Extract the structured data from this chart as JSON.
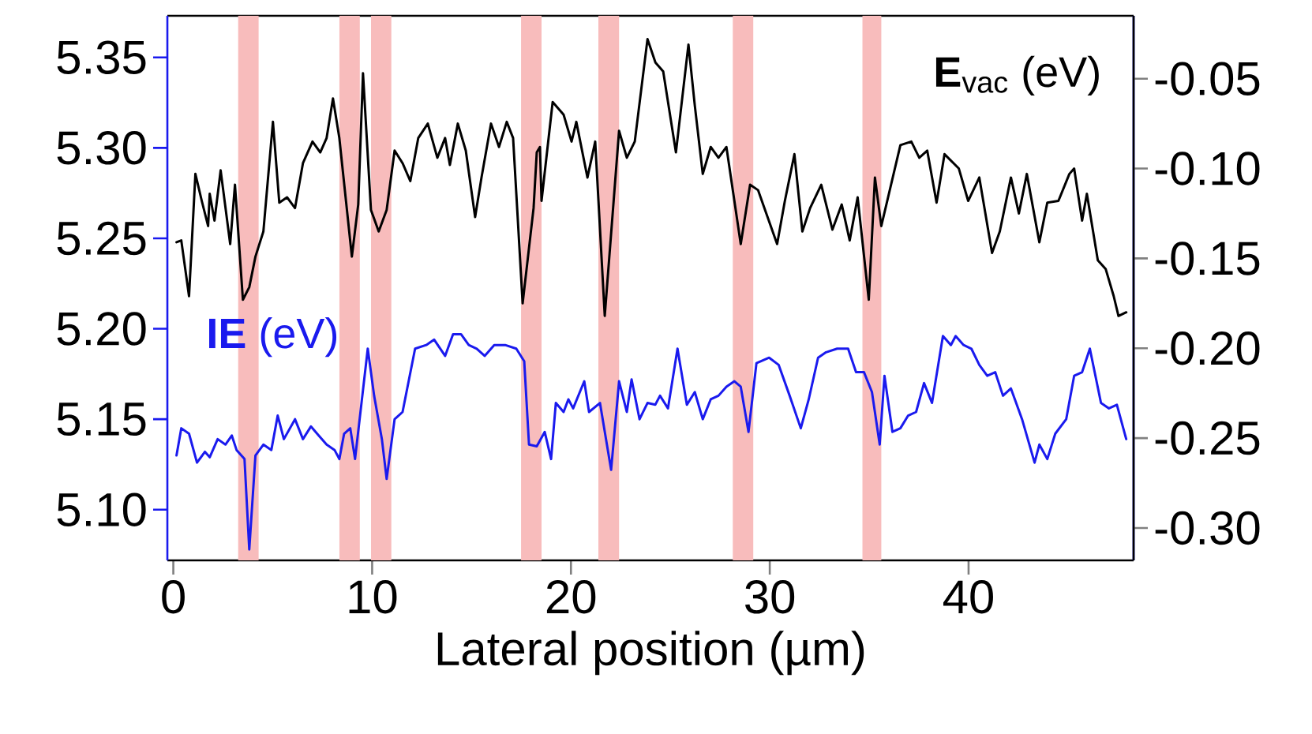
{
  "chart_data": {
    "type": "line",
    "xlabel": "Lateral position (µm)",
    "xlim": [
      -0.3,
      48.3
    ],
    "xticks": [
      0,
      10,
      20,
      30,
      40
    ],
    "ylim": [
      5.072,
      5.373
    ],
    "yticks": [
      {
        "value": 5.1,
        "label": "5.10"
      },
      {
        "value": 5.15,
        "label": "5.15"
      },
      {
        "value": 5.2,
        "label": "5.20"
      },
      {
        "value": 5.25,
        "label": "5.25"
      },
      {
        "value": 5.3,
        "label": "5.30"
      },
      {
        "value": 5.35,
        "label": "5.35"
      }
    ],
    "y2lim": [
      -0.318,
      -0.015
    ],
    "y2ticks": [
      {
        "value": -0.3,
        "label": "-0.30"
      },
      {
        "value": -0.25,
        "label": "-0.25"
      },
      {
        "value": -0.2,
        "label": "-0.20"
      },
      {
        "value": -0.15,
        "label": "-0.15"
      },
      {
        "value": -0.1,
        "label": "-0.10"
      },
      -0.05
    ],
    "bands": [
      {
        "axis": "x",
        "from": 3.26,
        "to": 4.29,
        "color": "#f8bcbc"
      },
      {
        "axis": "x",
        "from": 8.35,
        "to": 9.38,
        "color": "#f8bcbc"
      },
      {
        "axis": "x",
        "from": 9.94,
        "to": 10.97,
        "color": "#f8bcbc"
      },
      {
        "axis": "x",
        "from": 17.49,
        "to": 18.52,
        "color": "#f8bcbc"
      },
      {
        "axis": "x",
        "from": 21.38,
        "to": 22.42,
        "color": "#f8bcbc"
      },
      {
        "axis": "x",
        "from": 28.14,
        "to": 29.17,
        "color": "#f8bcbc"
      },
      {
        "axis": "x",
        "from": 34.66,
        "to": 35.61,
        "color": "#f8bcbc"
      }
    ],
    "series": [
      {
        "name": "**IE** (eV)",
        "color": "#1a1aee",
        "x": [
          0.16,
          0.4,
          0.79,
          1.19,
          1.59,
          1.83,
          2.23,
          2.62,
          2.94,
          3.18,
          3.58,
          3.82,
          4.13,
          4.53,
          4.93,
          5.25,
          5.56,
          6.12,
          6.52,
          6.92,
          7.31,
          7.71,
          8.11,
          8.35,
          8.59,
          8.9,
          9.14,
          9.78,
          10.1,
          10.49,
          10.73,
          11.13,
          11.53,
          12.16,
          12.72,
          13.12,
          13.67,
          14.07,
          14.47,
          14.86,
          15.26,
          15.66,
          16.14,
          16.69,
          17.25,
          17.65,
          17.89,
          18.28,
          18.68,
          19.0,
          19.24,
          19.63,
          19.87,
          20.11,
          20.67,
          20.91,
          21.46,
          22.02,
          22.42,
          22.81,
          23.05,
          23.45,
          23.85,
          24.24,
          24.48,
          24.88,
          25.36,
          25.83,
          26.23,
          26.63,
          27.03,
          27.42,
          27.82,
          28.22,
          28.54,
          28.93,
          29.33,
          29.97,
          30.45,
          31.0,
          31.56,
          31.96,
          32.43,
          32.83,
          33.39,
          33.94,
          34.34,
          34.74,
          35.14,
          35.53,
          35.77,
          36.17,
          36.57,
          36.96,
          37.36,
          37.76,
          38.16,
          38.71,
          39.11,
          39.35,
          39.75,
          40.14,
          40.54,
          40.94,
          41.34,
          41.73,
          42.13,
          42.69,
          43.32,
          43.56,
          43.96,
          44.36,
          44.91,
          45.31,
          45.71,
          46.1,
          46.66,
          47.06,
          47.46,
          47.93
        ],
        "values": [
          5.13,
          5.145,
          5.142,
          5.126,
          5.132,
          5.129,
          5.139,
          5.136,
          5.141,
          5.133,
          5.128,
          5.078,
          5.13,
          5.136,
          5.133,
          5.152,
          5.139,
          5.15,
          5.139,
          5.146,
          5.141,
          5.136,
          5.133,
          5.128,
          5.142,
          5.145,
          5.128,
          5.189,
          5.163,
          5.139,
          5.117,
          5.15,
          5.154,
          5.189,
          5.191,
          5.194,
          5.185,
          5.197,
          5.197,
          5.191,
          5.189,
          5.185,
          5.191,
          5.191,
          5.189,
          5.182,
          5.136,
          5.135,
          5.143,
          5.128,
          5.159,
          5.154,
          5.161,
          5.156,
          5.171,
          5.154,
          5.159,
          5.122,
          5.171,
          5.154,
          5.172,
          5.15,
          5.159,
          5.158,
          5.163,
          5.156,
          5.189,
          5.158,
          5.165,
          5.15,
          5.161,
          5.163,
          5.168,
          5.171,
          5.168,
          5.143,
          5.181,
          5.184,
          5.18,
          5.163,
          5.145,
          5.161,
          5.184,
          5.187,
          5.189,
          5.189,
          5.176,
          5.176,
          5.165,
          5.136,
          5.174,
          5.143,
          5.145,
          5.152,
          5.154,
          5.17,
          5.159,
          5.196,
          5.191,
          5.196,
          5.191,
          5.189,
          5.18,
          5.174,
          5.176,
          5.163,
          5.167,
          5.15,
          5.126,
          5.136,
          5.128,
          5.142,
          5.15,
          5.174,
          5.176,
          5.189,
          5.159,
          5.156,
          5.158,
          5.139
        ]
      },
      {
        "name": "**E**$_{vac}$ (eV)",
        "color": "#000000",
        "axis": "y2",
        "x": [
          0.16,
          0.4,
          0.79,
          1.11,
          1.43,
          1.75,
          1.83,
          2.07,
          2.38,
          2.86,
          3.1,
          3.5,
          3.82,
          4.13,
          4.53,
          5.01,
          5.33,
          5.72,
          6.12,
          6.52,
          7.0,
          7.39,
          7.71,
          8.03,
          8.35,
          8.98,
          9.3,
          9.54,
          9.94,
          10.33,
          10.73,
          11.13,
          11.53,
          11.92,
          12.32,
          12.8,
          13.28,
          13.67,
          13.91,
          14.31,
          14.71,
          15.18,
          15.5,
          15.98,
          16.38,
          16.77,
          17.09,
          17.57,
          18.12,
          18.28,
          18.44,
          18.52,
          19.08,
          19.63,
          20.03,
          20.27,
          20.83,
          21.22,
          21.7,
          22.42,
          22.81,
          23.21,
          23.85,
          24.25,
          24.64,
          25.28,
          25.91,
          26.23,
          26.63,
          27.03,
          27.42,
          27.82,
          28.54,
          29.01,
          29.41,
          30.37,
          30.76,
          31.24,
          31.64,
          32.03,
          32.59,
          33.15,
          33.62,
          34.02,
          34.42,
          34.98,
          35.29,
          35.61,
          36.57,
          37.12,
          37.52,
          37.92,
          38.39,
          38.79,
          39.51,
          39.98,
          40.54,
          41.18,
          41.57,
          42.13,
          42.53,
          42.93,
          43.56,
          43.96,
          44.52,
          45.07,
          45.31,
          45.71,
          45.95,
          46.5,
          46.9,
          47.3,
          47.54,
          47.93
        ],
        "values": [
          -0.141,
          -0.14,
          -0.171,
          -0.103,
          -0.118,
          -0.132,
          -0.114,
          -0.129,
          -0.101,
          -0.142,
          -0.109,
          -0.173,
          -0.166,
          -0.149,
          -0.135,
          -0.074,
          -0.119,
          -0.116,
          -0.122,
          -0.097,
          -0.085,
          -0.091,
          -0.083,
          -0.061,
          -0.083,
          -0.149,
          -0.12,
          -0.047,
          -0.123,
          -0.135,
          -0.123,
          -0.09,
          -0.097,
          -0.107,
          -0.083,
          -0.075,
          -0.094,
          -0.083,
          -0.098,
          -0.075,
          -0.09,
          -0.127,
          -0.105,
          -0.075,
          -0.088,
          -0.074,
          -0.083,
          -0.175,
          -0.122,
          -0.091,
          -0.088,
          -0.118,
          -0.063,
          -0.07,
          -0.085,
          -0.074,
          -0.105,
          -0.085,
          -0.182,
          -0.079,
          -0.094,
          -0.085,
          -0.028,
          -0.041,
          -0.046,
          -0.091,
          -0.031,
          -0.065,
          -0.103,
          -0.088,
          -0.094,
          -0.088,
          -0.142,
          -0.109,
          -0.112,
          -0.142,
          -0.118,
          -0.092,
          -0.135,
          -0.122,
          -0.109,
          -0.134,
          -0.12,
          -0.14,
          -0.116,
          -0.173,
          -0.105,
          -0.132,
          -0.087,
          -0.085,
          -0.094,
          -0.09,
          -0.119,
          -0.092,
          -0.1,
          -0.118,
          -0.105,
          -0.147,
          -0.135,
          -0.105,
          -0.125,
          -0.103,
          -0.141,
          -0.119,
          -0.118,
          -0.103,
          -0.1,
          -0.129,
          -0.114,
          -0.151,
          -0.156,
          -0.171,
          -0.182,
          -0.18
        ]
      }
    ]
  }
}
